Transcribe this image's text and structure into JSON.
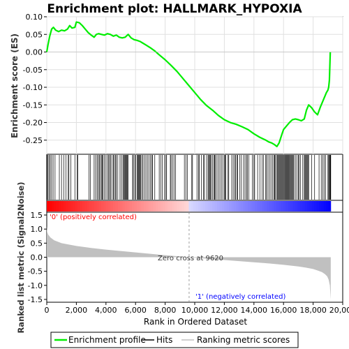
{
  "chart_data": {
    "type": "line",
    "title": "Enrichment plot: HALLMARK_HYPOXIA",
    "xlabel": "Rank in Ordered Dataset",
    "xlim": [
      0,
      20000
    ],
    "x_ticks": [
      0,
      2000,
      4000,
      6000,
      8000,
      10000,
      12000,
      14000,
      16000,
      18000,
      20000
    ],
    "x_tick_labels": [
      "0",
      "2,000",
      "4,000",
      "6,000",
      "8,000",
      "10,000",
      "12,000",
      "14,000",
      "16,000",
      "18,000",
      "20,000"
    ],
    "enrichment_panel": {
      "ylabel": "Enrichment score (ES)",
      "ylim": [
        -0.29,
        0.1
      ],
      "y_ticks": [
        0.1,
        0.05,
        0.0,
        -0.05,
        -0.1,
        -0.15,
        -0.2,
        -0.25
      ],
      "y_tick_labels": [
        "0.10",
        "0.05",
        "0.00",
        "-0.05",
        "-0.10",
        "-0.15",
        "-0.20",
        "-0.25"
      ],
      "grid": true,
      "series": [
        {
          "name": "Enrichment profile",
          "color": "#00ee00",
          "x": [
            0,
            80,
            200,
            330,
            450,
            600,
            800,
            1000,
            1200,
            1400,
            1550,
            1700,
            1900,
            2000,
            2200,
            2400,
            2600,
            2800,
            3000,
            3200,
            3350,
            3500,
            3700,
            3900,
            4100,
            4300,
            4500,
            4700,
            4900,
            5100,
            5300,
            5500,
            5700,
            5900,
            6100,
            6300,
            6500,
            6700,
            7000,
            7300,
            7600,
            8000,
            8400,
            8800,
            9200,
            9600,
            10000,
            10400,
            10800,
            11200,
            11600,
            12000,
            12400,
            12800,
            13200,
            13600,
            14000,
            14400,
            14800,
            15000,
            15200,
            15400,
            15550,
            15700,
            15800,
            15900,
            16000,
            16200,
            16400,
            16600,
            16800,
            17000,
            17200,
            17400,
            17550,
            17700,
            17900,
            18100,
            18300,
            18500,
            18700,
            18900,
            19000,
            19050,
            19100,
            19130,
            19160
          ],
          "values": [
            0.0,
            0.02,
            0.045,
            0.065,
            0.07,
            0.062,
            0.058,
            0.062,
            0.06,
            0.065,
            0.075,
            0.068,
            0.07,
            0.085,
            0.083,
            0.075,
            0.065,
            0.055,
            0.048,
            0.042,
            0.05,
            0.052,
            0.05,
            0.048,
            0.052,
            0.05,
            0.045,
            0.048,
            0.042,
            0.04,
            0.042,
            0.05,
            0.04,
            0.035,
            0.033,
            0.03,
            0.025,
            0.02,
            0.012,
            0.003,
            -0.008,
            -0.022,
            -0.038,
            -0.055,
            -0.075,
            -0.095,
            -0.115,
            -0.135,
            -0.152,
            -0.165,
            -0.18,
            -0.192,
            -0.2,
            -0.205,
            -0.212,
            -0.22,
            -0.232,
            -0.242,
            -0.25,
            -0.255,
            -0.258,
            -0.263,
            -0.268,
            -0.258,
            -0.245,
            -0.232,
            -0.22,
            -0.21,
            -0.2,
            -0.192,
            -0.19,
            -0.192,
            -0.195,
            -0.19,
            -0.165,
            -0.15,
            -0.158,
            -0.17,
            -0.178,
            -0.155,
            -0.135,
            -0.115,
            -0.108,
            -0.1,
            -0.08,
            -0.04,
            0.0
          ]
        }
      ]
    },
    "hits": {
      "name": "Hits",
      "color": "#000000",
      "x": [
        30,
        90,
        160,
        240,
        330,
        430,
        560,
        850,
        1000,
        1150,
        1300,
        1450,
        1500,
        1620,
        1900,
        2050,
        2100,
        2850,
        2950,
        3200,
        3300,
        3400,
        3480,
        3550,
        3620,
        3700,
        3760,
        3800,
        3900,
        4000,
        4100,
        4180,
        4250,
        4300,
        4400,
        4500,
        4550,
        4650,
        4700,
        4800,
        4950,
        5050,
        5150,
        5200,
        5250,
        5300,
        5350,
        5400,
        5450,
        5500,
        5800,
        5850,
        5950,
        6000,
        6100,
        6150,
        6200,
        6250,
        6300,
        6350,
        6420,
        6500,
        6600,
        6700,
        6800,
        6900,
        7000,
        7100,
        7150,
        7300,
        7600,
        7700,
        7800,
        7950,
        8050,
        8100,
        8350,
        8400,
        8500,
        8600,
        8700,
        9300,
        9400,
        9500,
        9800,
        9850,
        10150,
        10250,
        10300,
        10450,
        10600,
        10650,
        10800,
        10900,
        10950,
        11000,
        11050,
        11100,
        11200,
        11300,
        11350,
        11400,
        11500,
        11600,
        11700,
        11800,
        11900,
        12000,
        12050,
        12100,
        12250,
        12300,
        12500,
        12600,
        12700,
        12750,
        12850,
        12900,
        13050,
        13150,
        13300,
        13400,
        13500,
        13550,
        13650,
        13900,
        14000,
        14050,
        14250,
        14400,
        14550,
        14650,
        14800,
        14850,
        14950,
        15050,
        15150,
        15250,
        15350,
        15400,
        15450,
        15550,
        15600,
        15650,
        15700,
        15750,
        15800,
        15850,
        15900,
        15950,
        16000,
        16050,
        16100,
        16150,
        16200,
        16250,
        16300,
        16350,
        16400,
        16450,
        16500,
        16550,
        16600,
        16650,
        16700,
        16800,
        16900,
        17000,
        17050,
        17150,
        17300,
        17400,
        17450,
        17500,
        17550,
        17600,
        17650,
        17700,
        17900,
        18100,
        18400,
        18550,
        18650,
        18750,
        18850,
        19000,
        19050,
        19100,
        19130,
        19160,
        19190
      ]
    },
    "ranking_panel": {
      "name": "Ranking metric scores",
      "ylabel": "Ranked list metric (Signal2Noise)",
      "ylim": [
        -1.6,
        1.6
      ],
      "y_ticks": [
        1.5,
        1.0,
        0.5,
        0.0,
        -0.5,
        -1.0,
        -1.5
      ],
      "y_tick_labels": [
        "1.5",
        "1.0",
        "0.5",
        "0.0",
        "-0.5",
        "-1.0",
        "-1.5"
      ],
      "fill_color": "#c0c0c0",
      "x": [
        0,
        30,
        100,
        250,
        500,
        1000,
        2000,
        3000,
        4000,
        5000,
        6000,
        7000,
        8000,
        9000,
        9620,
        10000,
        11000,
        12000,
        13000,
        14000,
        15000,
        16000,
        17000,
        17500,
        18000,
        18300,
        18600,
        18800,
        18950,
        19050,
        19130,
        19190
      ],
      "values": [
        1.1,
        0.9,
        0.8,
        0.7,
        0.6,
        0.5,
        0.4,
        0.33,
        0.27,
        0.22,
        0.17,
        0.12,
        0.07,
        0.03,
        0.0,
        -0.02,
        -0.06,
        -0.1,
        -0.14,
        -0.18,
        -0.22,
        -0.27,
        -0.33,
        -0.37,
        -0.42,
        -0.47,
        -0.53,
        -0.6,
        -0.68,
        -0.8,
        -1.0,
        -1.5
      ],
      "annotations": {
        "positive": "'0' (positively correlated)",
        "negative": "'1' (negatively correlated)",
        "zero_cross": "Zero cross at 9620",
        "zero_cross_x": 9620
      }
    },
    "legend": {
      "placement": "bottom",
      "entries": [
        {
          "label": "Enrichment profile",
          "color": "#00ee00"
        },
        {
          "label": "Hits",
          "color": "#000000"
        },
        {
          "label": "Ranking metric scores",
          "color": "#c0c0c0"
        }
      ]
    },
    "colors": {
      "frame": "#000000",
      "grid": "#e0e0e0",
      "positive_label": "#ff0000",
      "negative_label": "#0000ff",
      "heatmap_positive": "#ff0000",
      "heatmap_negative": "#0000ff",
      "zero_line": "#888888"
    }
  }
}
